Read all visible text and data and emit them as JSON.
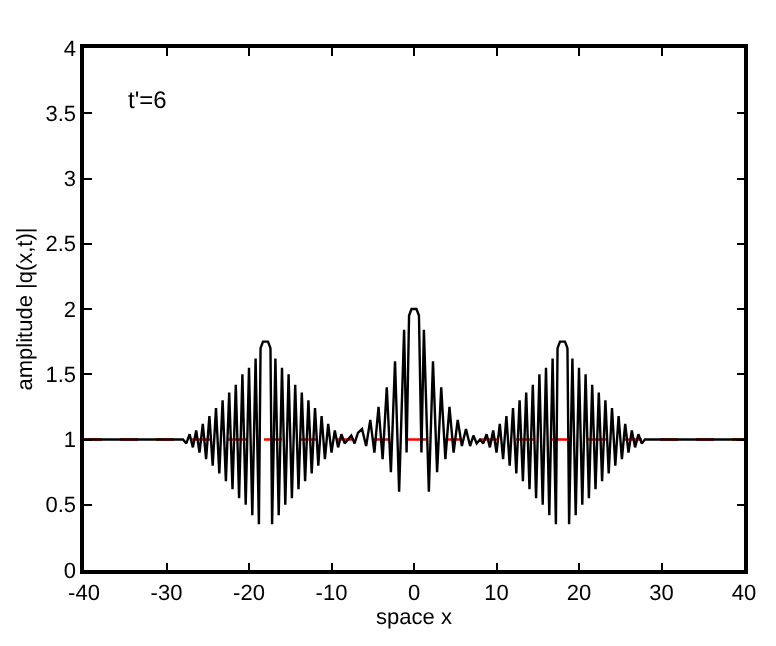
{
  "chart_data": {
    "type": "line",
    "xlabel": "space x",
    "ylabel": "amplitude |q(x,t)|",
    "annotations": [
      "t'=6"
    ],
    "xlim": [
      -40,
      40
    ],
    "xticks": [
      -40,
      -30,
      -20,
      -10,
      0,
      10,
      20,
      30,
      40
    ],
    "ylim": [
      0,
      4
    ],
    "yticks": [
      0,
      0.5,
      1,
      1.5,
      2,
      2.5,
      3,
      3.5,
      4
    ],
    "grid": false,
    "marker": "none",
    "line_style": "solid",
    "ref_lines": [
      {
        "axis": "y",
        "value": 1,
        "color": "#ff0000",
        "line_style": "dashed"
      }
    ],
    "series": [
      {
        "color": "#000000",
        "x": [
          -40,
          -28,
          -27.6,
          -27.2,
          -26.8,
          -26.4,
          -26.0,
          -25.6,
          -25.2,
          -24.8,
          -24.4,
          -24.0,
          -23.6,
          -23.2,
          -22.8,
          -22.4,
          -22.0,
          -21.6,
          -21.2,
          -20.8,
          -20.4,
          -20.0,
          -19.6,
          -19.2,
          -18.8,
          -18.6,
          -18.3,
          -17.7,
          -17.4,
          -17.2,
          -16.8,
          -16.4,
          -16.0,
          -15.6,
          -15.2,
          -14.8,
          -14.4,
          -14.0,
          -13.6,
          -13.2,
          -12.8,
          -12.4,
          -12.0,
          -11.6,
          -11.2,
          -10.8,
          -10.4,
          -10.0,
          -9.6,
          -9.2,
          -8.8,
          -8.4,
          -8.0,
          -7.6,
          -7.2,
          -6.8,
          -6.3,
          -5.8,
          -5.3,
          -4.8,
          -4.3,
          -3.8,
          -3.3,
          -2.8,
          -2.3,
          -1.8,
          -1.2,
          -0.9,
          -0.6,
          -0.3,
          0.3,
          0.6,
          0.9,
          1.2,
          1.8,
          2.3,
          2.8,
          3.3,
          3.8,
          4.3,
          4.8,
          5.3,
          5.8,
          6.3,
          6.8,
          7.2,
          7.6,
          8.0,
          8.4,
          8.8,
          9.2,
          9.6,
          10.0,
          10.4,
          10.8,
          11.2,
          11.6,
          12.0,
          12.4,
          12.8,
          13.2,
          13.6,
          14.0,
          14.4,
          14.8,
          15.2,
          15.6,
          16.0,
          16.4,
          16.8,
          17.2,
          17.4,
          17.7,
          18.3,
          18.6,
          18.8,
          19.2,
          19.6,
          20.0,
          20.4,
          20.8,
          21.2,
          21.6,
          22.0,
          22.4,
          22.8,
          23.2,
          23.6,
          24.0,
          24.4,
          24.8,
          25.2,
          25.6,
          26.0,
          26.4,
          26.8,
          27.2,
          27.6,
          28,
          40
        ],
        "values": [
          1,
          1,
          0.97,
          1.04,
          0.94,
          1.07,
          0.9,
          1.12,
          0.85,
          1.18,
          0.8,
          1.24,
          0.74,
          1.3,
          0.68,
          1.36,
          0.62,
          1.42,
          0.55,
          1.5,
          0.5,
          1.55,
          0.42,
          1.62,
          0.35,
          1.7,
          1.75,
          1.75,
          1.7,
          0.35,
          1.62,
          0.42,
          1.55,
          0.5,
          1.5,
          0.55,
          1.42,
          0.62,
          1.36,
          0.68,
          1.3,
          0.74,
          1.24,
          0.8,
          1.18,
          0.85,
          1.12,
          0.9,
          1.07,
          0.94,
          1.04,
          0.97,
          1.0,
          1.03,
          0.97,
          1.05,
          1.08,
          0.95,
          1.15,
          0.9,
          1.25,
          0.85,
          1.4,
          0.75,
          1.6,
          0.6,
          1.84,
          0.9,
          1.95,
          2.0,
          2.0,
          1.95,
          0.9,
          1.84,
          0.6,
          1.6,
          0.75,
          1.4,
          0.85,
          1.25,
          0.9,
          1.15,
          0.95,
          1.08,
          0.95,
          1.03,
          0.97,
          1.0,
          0.97,
          1.04,
          0.94,
          1.07,
          0.9,
          1.12,
          0.85,
          1.18,
          0.8,
          1.24,
          0.74,
          1.3,
          0.68,
          1.36,
          0.62,
          1.42,
          0.55,
          1.5,
          0.5,
          1.55,
          0.42,
          1.62,
          0.35,
          1.7,
          1.75,
          1.75,
          1.7,
          0.35,
          1.62,
          0.42,
          1.55,
          0.5,
          1.5,
          0.55,
          1.42,
          0.62,
          1.36,
          0.68,
          1.3,
          0.74,
          1.24,
          0.8,
          1.18,
          0.85,
          1.12,
          0.9,
          1.07,
          0.94,
          1.04,
          0.97,
          1,
          1
        ]
      }
    ]
  }
}
